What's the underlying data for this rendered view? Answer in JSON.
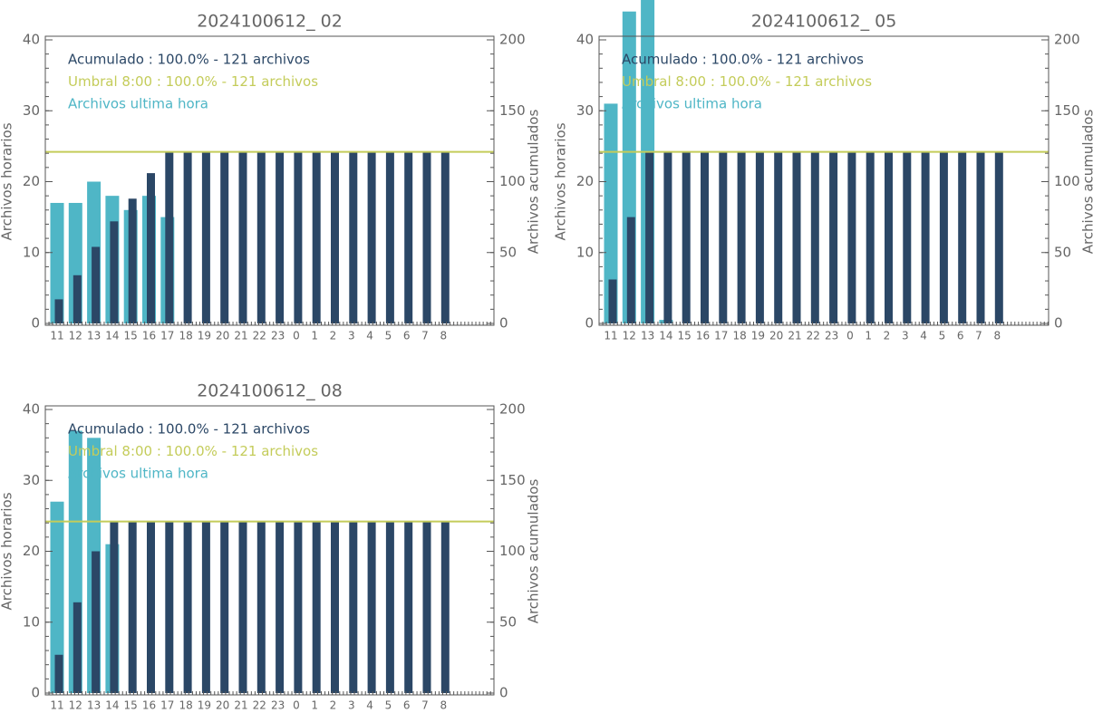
{
  "chart_data": [
    {
      "type": "bar",
      "title": "2024100612_ 02",
      "categories": [
        "11",
        "12",
        "13",
        "14",
        "15",
        "16",
        "17",
        "18",
        "19",
        "20",
        "21",
        "22",
        "23",
        "0",
        "1",
        "2",
        "3",
        "4",
        "5",
        "6",
        "7",
        "8"
      ],
      "series": [
        {
          "name": "Archivos ultima hora",
          "color": "#4fb6c6",
          "values": [
            17,
            17,
            20,
            18,
            16,
            18,
            15,
            0,
            0,
            0,
            0,
            0,
            0,
            0,
            0,
            0,
            0,
            0,
            0,
            0,
            0,
            0
          ]
        },
        {
          "name": "Acumulado : 100.0% - 121 archivos",
          "color": "#2b4766",
          "axis": "y2",
          "values": [
            17,
            34,
            54,
            72,
            88,
            106,
            121,
            121,
            121,
            121,
            121,
            121,
            121,
            121,
            121,
            121,
            121,
            121,
            121,
            121,
            121,
            121
          ]
        }
      ],
      "threshold": {
        "name": "Umbral 8:00 : 100.0% - 121 archivos",
        "color": "#c4cc5a",
        "axis": "y2",
        "value": 121
      },
      "ylabel": "Archivos horarios",
      "y2label": "Archivos acumulados",
      "ylim": [
        0,
        40
      ],
      "yticks": [
        0,
        10,
        20,
        30,
        40
      ],
      "y2lim": [
        0,
        200
      ],
      "y2ticks": [
        0,
        50,
        100,
        150,
        200
      ]
    },
    {
      "type": "bar",
      "title": "2024100612_ 05",
      "categories": [
        "11",
        "12",
        "13",
        "14",
        "15",
        "16",
        "17",
        "18",
        "19",
        "20",
        "21",
        "22",
        "23",
        "0",
        "1",
        "2",
        "3",
        "4",
        "5",
        "6",
        "7",
        "8"
      ],
      "series": [
        {
          "name": "Archivos ultima hora",
          "color": "#4fb6c6",
          "values": [
            31,
            44,
            46,
            0.5,
            0,
            0,
            0,
            0,
            0,
            0,
            0,
            0,
            0,
            0,
            0,
            0,
            0,
            0,
            0,
            0,
            0,
            0
          ]
        },
        {
          "name": "Acumulado : 100.0% - 121 archivos",
          "color": "#2b4766",
          "axis": "y2",
          "values": [
            31,
            75,
            121,
            121,
            121,
            121,
            121,
            121,
            121,
            121,
            121,
            121,
            121,
            121,
            121,
            121,
            121,
            121,
            121,
            121,
            121,
            121
          ]
        }
      ],
      "threshold": {
        "name": "Umbral 8:00 : 100.0% - 121 archivos",
        "color": "#c4cc5a",
        "axis": "y2",
        "value": 121
      },
      "ylabel": "Archivos horarios",
      "y2label": "Archivos acumulados",
      "ylim": [
        0,
        40
      ],
      "yticks": [
        0,
        10,
        20,
        30,
        40
      ],
      "y2lim": [
        0,
        200
      ],
      "y2ticks": [
        0,
        50,
        100,
        150,
        200
      ]
    },
    {
      "type": "bar",
      "title": "2024100612_ 08",
      "categories": [
        "11",
        "12",
        "13",
        "14",
        "15",
        "16",
        "17",
        "18",
        "19",
        "20",
        "21",
        "22",
        "23",
        "0",
        "1",
        "2",
        "3",
        "4",
        "5",
        "6",
        "7",
        "8"
      ],
      "series": [
        {
          "name": "Archivos ultima hora",
          "color": "#4fb6c6",
          "values": [
            27,
            37,
            36,
            21,
            0,
            0,
            0,
            0,
            0,
            0,
            0,
            0,
            0,
            0,
            0,
            0,
            0,
            0,
            0,
            0,
            0,
            0
          ]
        },
        {
          "name": "Acumulado : 100.0% - 121 archivos",
          "color": "#2b4766",
          "axis": "y2",
          "values": [
            27,
            64,
            100,
            121,
            121,
            121,
            121,
            121,
            121,
            121,
            121,
            121,
            121,
            121,
            121,
            121,
            121,
            121,
            121,
            121,
            121,
            121
          ]
        }
      ],
      "threshold": {
        "name": "Umbral 8:00 : 100.0% - 121 archivos",
        "color": "#c4cc5a",
        "axis": "y2",
        "value": 121
      },
      "ylabel": "Archivos horarios",
      "y2label": "Archivos acumulados",
      "ylim": [
        0,
        40
      ],
      "yticks": [
        0,
        10,
        20,
        30,
        40
      ],
      "y2lim": [
        0,
        200
      ],
      "y2ticks": [
        0,
        50,
        100,
        150,
        200
      ]
    }
  ]
}
